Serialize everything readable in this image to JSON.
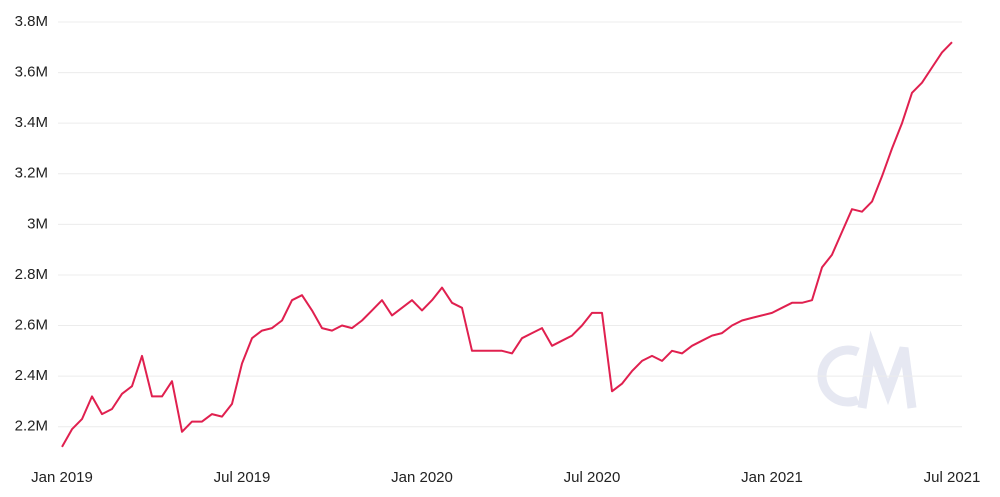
{
  "chart_data": {
    "type": "line",
    "categories": [
      "Jan 2019",
      null,
      null,
      null,
      null,
      null,
      null,
      null,
      null,
      null,
      null,
      null,
      null,
      null,
      null,
      null,
      null,
      null,
      "Jul 2019",
      null,
      null,
      null,
      null,
      null,
      null,
      null,
      null,
      null,
      null,
      null,
      null,
      null,
      null,
      null,
      null,
      null,
      "Jan 2020",
      null,
      null,
      null,
      null,
      null,
      null,
      null,
      null,
      null,
      null,
      null,
      null,
      null,
      null,
      null,
      null,
      "Jul 2020",
      null,
      null,
      null,
      null,
      null,
      null,
      null,
      null,
      null,
      null,
      null,
      null,
      null,
      null,
      null,
      null,
      null,
      "Jan 2021",
      null,
      null,
      null,
      null,
      null,
      null,
      null,
      null,
      null,
      null,
      null,
      null,
      null,
      null,
      null,
      null,
      null,
      "Jul 2021"
    ],
    "series": [
      {
        "color": "#e0204f",
        "values": [
          2120000,
          2190000,
          2230000,
          2320000,
          2250000,
          2270000,
          2330000,
          2360000,
          2480000,
          2320000,
          2320000,
          2380000,
          2180000,
          2220000,
          2220000,
          2250000,
          2240000,
          2290000,
          2450000,
          2550000,
          2580000,
          2590000,
          2620000,
          2700000,
          2720000,
          2660000,
          2590000,
          2580000,
          2600000,
          2590000,
          2620000,
          2660000,
          2700000,
          2640000,
          2670000,
          2700000,
          2660000,
          2700000,
          2750000,
          2690000,
          2670000,
          2500000,
          2500000,
          2500000,
          2500000,
          2490000,
          2550000,
          2570000,
          2590000,
          2520000,
          2540000,
          2560000,
          2600000,
          2650000,
          2650000,
          2340000,
          2370000,
          2420000,
          2460000,
          2480000,
          2460000,
          2500000,
          2490000,
          2520000,
          2540000,
          2560000,
          2570000,
          2600000,
          2620000,
          2630000,
          2640000,
          2650000,
          2670000,
          2690000,
          2690000,
          2700000,
          2830000,
          2880000,
          2970000,
          3060000,
          3050000,
          3090000,
          3190000,
          3300000,
          3400000,
          3520000,
          3560000,
          3620000,
          3680000,
          3720000
        ]
      }
    ],
    "ylim": [
      2100000,
      3800000
    ],
    "yticks": [
      {
        "value": 2200000,
        "label": "2.2M"
      },
      {
        "value": 2400000,
        "label": "2.4M"
      },
      {
        "value": 2600000,
        "label": "2.6M"
      },
      {
        "value": 2800000,
        "label": "2.8M"
      },
      {
        "value": 3000000,
        "label": "3M"
      },
      {
        "value": 3200000,
        "label": "3.2M"
      },
      {
        "value": 3400000,
        "label": "3.4M"
      },
      {
        "value": 3600000,
        "label": "3.6M"
      },
      {
        "value": 3800000,
        "label": "3.8M"
      }
    ],
    "grid": true
  }
}
